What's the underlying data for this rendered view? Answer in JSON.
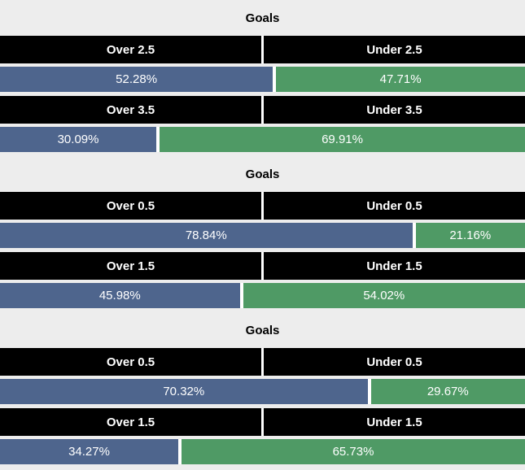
{
  "colors": {
    "background": "#EDEDED",
    "header_text": "#000000",
    "cell_bg": "#000000",
    "cell_text": "#FFFFFF",
    "over_color": "#4E658D",
    "under_color": "#4F9A65",
    "divider": "#FFFFFF"
  },
  "sections": [
    {
      "title": "Goals",
      "markets": [
        {
          "over_label": "Over 2.5",
          "under_label": "Under 2.5",
          "over_pct_label": "52.28%",
          "under_pct_label": "47.71%",
          "over_value": 52.28,
          "under_value": 47.71
        },
        {
          "over_label": "Over 3.5",
          "under_label": "Under 3.5",
          "over_pct_label": "30.09%",
          "under_pct_label": "69.91%",
          "over_value": 30.09,
          "under_value": 69.91
        }
      ]
    },
    {
      "title": "Goals",
      "markets": [
        {
          "over_label": "Over 0.5",
          "under_label": "Under 0.5",
          "over_pct_label": "78.84%",
          "under_pct_label": "21.16%",
          "over_value": 78.84,
          "under_value": 21.16
        },
        {
          "over_label": "Over 1.5",
          "under_label": "Under 1.5",
          "over_pct_label": "45.98%",
          "under_pct_label": "54.02%",
          "over_value": 45.98,
          "under_value": 54.02
        }
      ]
    },
    {
      "title": "Goals",
      "markets": [
        {
          "over_label": "Over 0.5",
          "under_label": "Under 0.5",
          "over_pct_label": "70.32%",
          "under_pct_label": "29.67%",
          "over_value": 70.32,
          "under_value": 29.67
        },
        {
          "over_label": "Over 1.5",
          "under_label": "Under 1.5",
          "over_pct_label": "34.27%",
          "under_pct_label": "65.73%",
          "over_value": 34.27,
          "under_value": 65.73
        }
      ]
    }
  ],
  "chart_data": [
    {
      "type": "bar",
      "title": "Goals",
      "stacked": true,
      "orientation": "horizontal",
      "categories": [
        "Over 2.5 vs Under 2.5",
        "Over 3.5 vs Under 3.5"
      ],
      "series": [
        {
          "name": "Over",
          "values": [
            52.28,
            30.09
          ]
        },
        {
          "name": "Under",
          "values": [
            47.71,
            69.91
          ]
        }
      ],
      "xlim": [
        0,
        100
      ],
      "unit": "%",
      "legend_position": "none",
      "grid": false
    },
    {
      "type": "bar",
      "title": "Goals",
      "stacked": true,
      "orientation": "horizontal",
      "categories": [
        "Over 0.5 vs Under 0.5",
        "Over 1.5 vs Under 1.5"
      ],
      "series": [
        {
          "name": "Over",
          "values": [
            78.84,
            45.98
          ]
        },
        {
          "name": "Under",
          "values": [
            21.16,
            54.02
          ]
        }
      ],
      "xlim": [
        0,
        100
      ],
      "unit": "%",
      "legend_position": "none",
      "grid": false
    },
    {
      "type": "bar",
      "title": "Goals",
      "stacked": true,
      "orientation": "horizontal",
      "categories": [
        "Over 0.5 vs Under 0.5",
        "Over 1.5 vs Under 1.5"
      ],
      "series": [
        {
          "name": "Over",
          "values": [
            70.32,
            34.27
          ]
        },
        {
          "name": "Under",
          "values": [
            29.67,
            65.73
          ]
        }
      ],
      "xlim": [
        0,
        100
      ],
      "unit": "%",
      "legend_position": "none",
      "grid": false
    }
  ]
}
